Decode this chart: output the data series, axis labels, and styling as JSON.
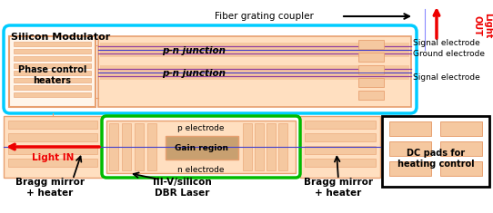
{
  "fig_width": 5.42,
  "fig_height": 2.35,
  "dpi": 100,
  "colors": {
    "cyan": "#00CCFF",
    "green": "#00BB00",
    "black": "#000000",
    "salmon": "#E8A070",
    "peach": "#F5C8A0",
    "peach_light": "#FFDFC0",
    "brown_gain": "#C8A070",
    "purple": "#9040A0",
    "blue_wave": "#4040CC",
    "red": "#EE0000",
    "white": "#FFFFFF",
    "light_bg": "#FFF5EA"
  },
  "texts": {
    "silicon_modulator": "Silicon Modulator",
    "fiber_grating": "Fiber grating coupler",
    "light_out": "Light\nOUT",
    "light_in": "Light IN",
    "phase_control": "Phase control\nheaters",
    "pn1": "p-n junction",
    "pn2": "p-n junction",
    "sig1": "Signal electrode",
    "gnd": "Ground electrode",
    "sig2": "Signal electrode",
    "p_elec": "p electrode",
    "gain": "Gain region",
    "n_elec": "n electrode",
    "bragg_l": "Bragg mirror\n+ heater",
    "iii_v": "III-V/silicon\nDBR Laser",
    "bragg_r": "Bragg mirror\n+ heater",
    "dc_pads": "DC pads for\nheating control"
  }
}
